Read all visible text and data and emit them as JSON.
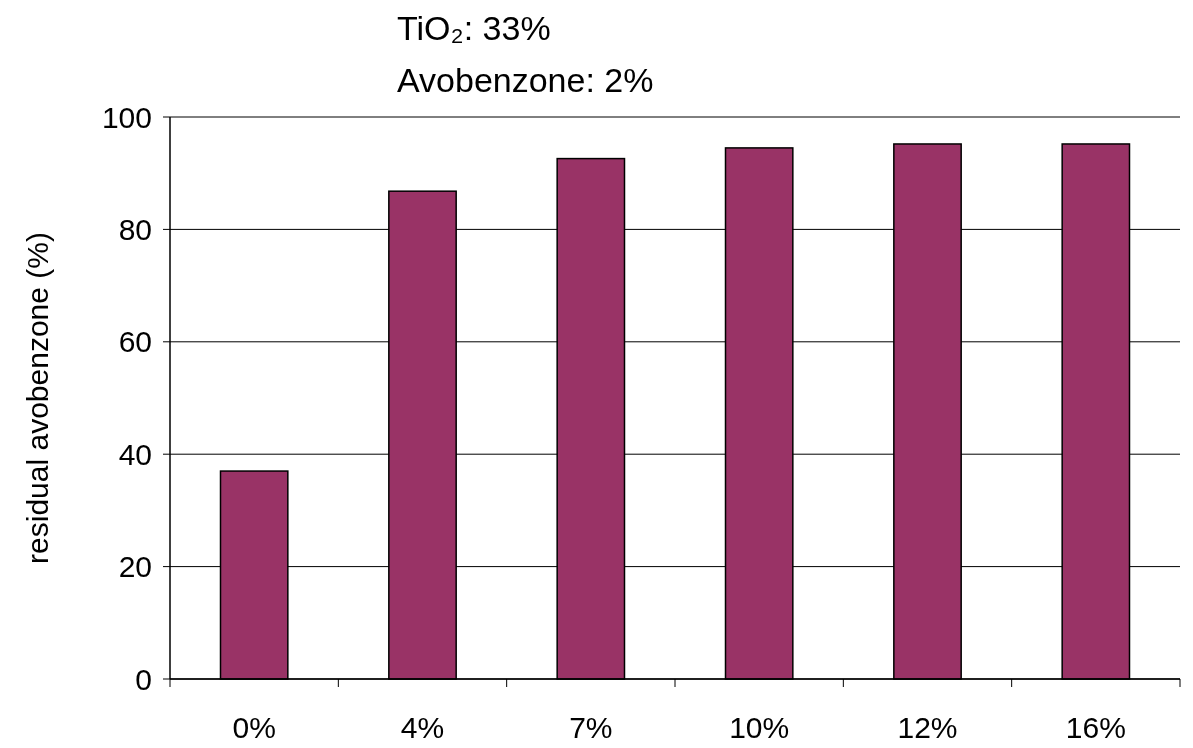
{
  "chart_data": {
    "type": "bar",
    "title": "TiO₂: 33%",
    "subtitle": "Avobenzone: 2%",
    "ylabel": "residual avobenzone (%)",
    "categories": [
      "0%",
      "4%",
      "7%",
      "10%",
      "12%",
      "16%"
    ],
    "values": [
      37,
      86.8,
      92.6,
      94.5,
      95.2,
      95.2
    ],
    "color": "#993366",
    "ylim": [
      0,
      100
    ],
    "yticks": [
      0,
      20,
      40,
      60,
      80,
      100
    ],
    "grid": "y"
  }
}
